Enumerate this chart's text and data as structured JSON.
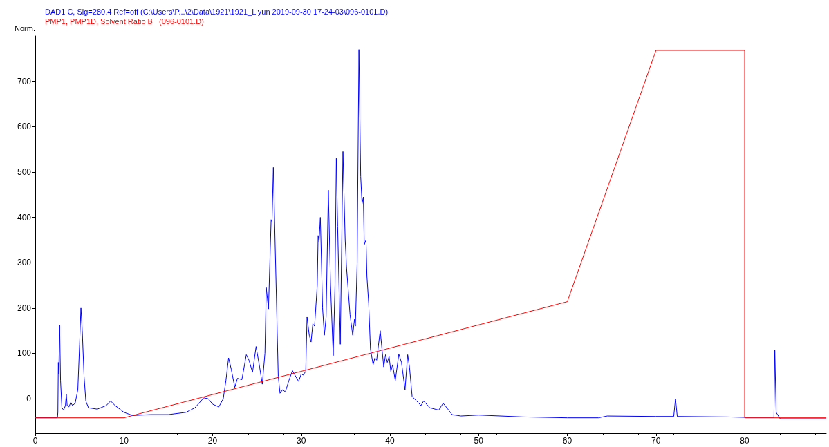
{
  "chart_data": {
    "type": "line",
    "ylabel": "Norm.",
    "xlim": [
      0,
      89.2
    ],
    "xticks": [
      0,
      10,
      20,
      30,
      40,
      50,
      60,
      70,
      80
    ],
    "ylim": [
      -76,
      800
    ],
    "yticks": [
      0,
      100,
      200,
      300,
      400,
      500,
      600,
      700
    ],
    "grid": false,
    "legend": "top left",
    "marker": "none",
    "line_style": "solid",
    "series": [
      {
        "name": "DAD1 C, Sig=280,4 Ref=off (C:\\Users\\P...\\2\\Data\\1921\\1921_Liyun 2019-09-30 17-24-03\\096-0101.D)",
        "color": "#0000ff",
        "x": [
          0,
          2.5,
          2.55,
          2.6,
          2.65,
          2.75,
          2.85,
          3.0,
          3.2,
          3.4,
          3.5,
          3.6,
          3.8,
          4.0,
          4.2,
          4.5,
          4.8,
          5.0,
          5.15,
          5.3,
          5.5,
          5.7,
          6,
          7,
          8,
          8.5,
          9,
          10,
          11,
          13,
          15,
          17,
          18,
          19,
          19.5,
          20,
          20.7,
          21.2,
          21.5,
          21.8,
          22.1,
          22.5,
          22.8,
          23.3,
          23.8,
          24.1,
          24.5,
          24.9,
          25.3,
          25.6,
          25.9,
          26.05,
          26.3,
          26.6,
          26.7,
          26.85,
          27.1,
          27.4,
          27.6,
          27.9,
          28.2,
          28.6,
          29,
          29.4,
          29.7,
          30,
          30.2,
          30.5,
          30.65,
          30.9,
          31.1,
          31.3,
          31.5,
          31.8,
          31.9,
          32.0,
          32.15,
          32.4,
          32.6,
          32.8,
          33.05,
          33.3,
          33.6,
          33.8,
          33.95,
          34.1,
          34.4,
          34.7,
          34.95,
          35.1,
          35.5,
          35.8,
          36.0,
          36.1,
          36.3,
          36.5,
          36.7,
          36.85,
          37.0,
          37.1,
          37.3,
          37.4,
          37.6,
          37.8,
          38.1,
          38.3,
          38.5,
          38.9,
          39.3,
          39.5,
          39.7,
          39.9,
          40.1,
          40.3,
          40.6,
          41,
          41.3,
          41.7,
          42.0,
          42.2,
          42.5,
          43,
          43.5,
          43.8,
          44.5,
          45.5,
          46,
          46.5,
          47,
          48,
          50,
          55,
          60,
          63.5,
          64.5,
          70,
          72,
          72.2,
          72.4,
          78,
          80,
          83.3,
          83.4,
          83.55,
          84,
          89.2
        ],
        "values": [
          -42,
          -42,
          -30,
          80,
          55,
          162,
          40,
          -20,
          -25,
          -15,
          10,
          -15,
          -18,
          -8,
          -15,
          -10,
          20,
          120,
          200,
          150,
          50,
          -5,
          -20,
          -23,
          -15,
          -5,
          -15,
          -30,
          -37,
          -35,
          -35,
          -30,
          -20,
          2,
          0,
          -12,
          -18,
          0,
          40,
          90,
          65,
          25,
          45,
          42,
          97,
          85,
          58,
          115,
          70,
          32,
          100,
          245,
          198,
          395,
          390,
          510,
          300,
          50,
          12,
          20,
          15,
          40,
          62,
          48,
          38,
          55,
          52,
          60,
          180,
          140,
          125,
          165,
          160,
          250,
          360,
          345,
          400,
          200,
          140,
          180,
          460,
          250,
          95,
          250,
          530,
          380,
          120,
          545,
          350,
          290,
          185,
          140,
          175,
          160,
          300,
          770,
          490,
          430,
          445,
          340,
          350,
          270,
          210,
          110,
          75,
          90,
          85,
          150,
          70,
          97,
          80,
          93,
          60,
          75,
          40,
          98,
          80,
          20,
          97,
          70,
          5,
          -5,
          -15,
          -5,
          -20,
          -25,
          -10,
          -22,
          -35,
          -38,
          -36,
          -40,
          -42,
          -42,
          -38,
          -39,
          -39,
          0,
          -39,
          -40,
          -41,
          -41,
          107,
          -30,
          -44,
          -44
        ]
      },
      {
        "name": "PMP1, PMP1D, Solvent Ratio B   (096-0101.D)",
        "color": "#ff0000",
        "x": [
          0,
          10,
          60,
          70,
          80,
          80,
          89.2
        ],
        "values": [
          -42,
          -42,
          214,
          768,
          768,
          -42,
          -42
        ]
      }
    ]
  }
}
